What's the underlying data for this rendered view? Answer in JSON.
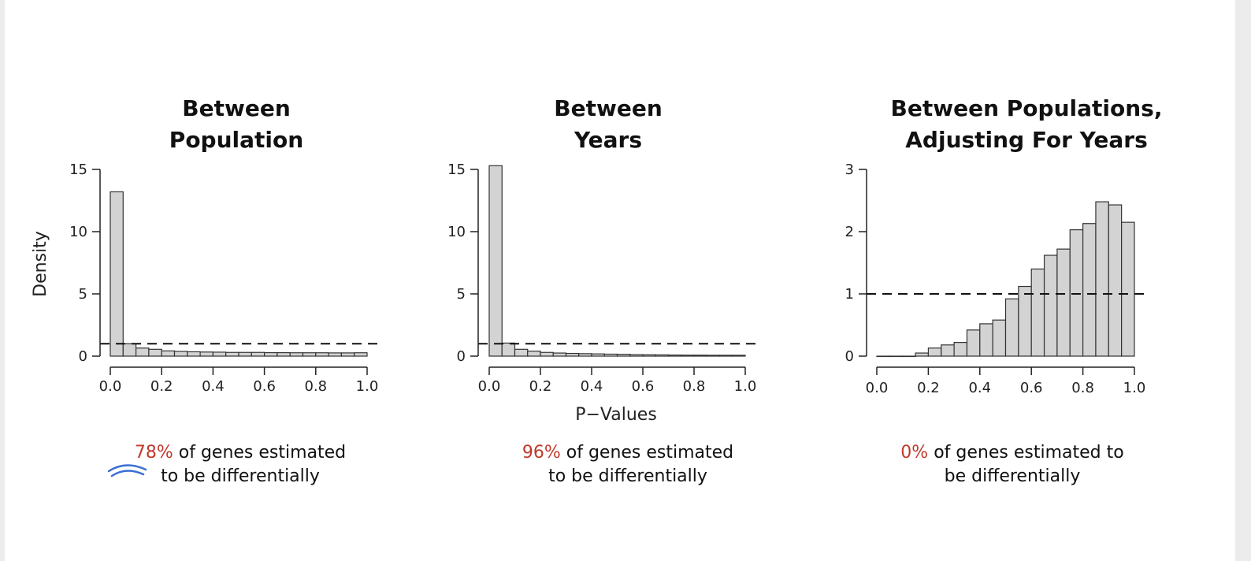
{
  "panels": [
    {
      "title_line1": "Between",
      "title_line2": "Population",
      "caption_pct": "78%",
      "caption_rest": " of genes estimated",
      "caption_line2": "to be differentially"
    },
    {
      "title_line1": "Between",
      "title_line2": "Years",
      "caption_pct": "96%",
      "caption_rest": " of genes estimated",
      "caption_line2": "to be differentially"
    },
    {
      "title_line1": "Between Populations,",
      "title_line2": "Adjusting For Years",
      "caption_pct": "0%",
      "caption_rest": " of genes estimated to",
      "caption_line2": "be differentially"
    }
  ],
  "colors": {
    "bar_fill": "#d3d3d3",
    "bar_stroke": "#333333",
    "highlight": "#c0392b",
    "pen_annotation": "#3b6fd6"
  },
  "chart_data": [
    {
      "type": "bar",
      "title": "Between Population",
      "xlabel": "",
      "ylabel": "Density",
      "bin_width": 0.05,
      "x_ticks": [
        "0.0",
        "0.2",
        "0.4",
        "0.6",
        "0.8",
        "1.0"
      ],
      "y_ticks": [
        "0",
        "5",
        "10",
        "15"
      ],
      "xlim": [
        0,
        1
      ],
      "ylim": [
        0,
        15
      ],
      "values": [
        13.2,
        1.0,
        0.65,
        0.55,
        0.42,
        0.38,
        0.35,
        0.33,
        0.32,
        0.3,
        0.3,
        0.3,
        0.28,
        0.28,
        0.27,
        0.27,
        0.27,
        0.26,
        0.26,
        0.27
      ],
      "reference_line": 1
    },
    {
      "type": "bar",
      "title": "Between Years",
      "xlabel": "P−Values",
      "ylabel": "",
      "bin_width": 0.05,
      "x_ticks": [
        "0.0",
        "0.2",
        "0.4",
        "0.6",
        "0.8",
        "1.0"
      ],
      "y_ticks": [
        "0",
        "5",
        "10",
        "15"
      ],
      "xlim": [
        0,
        1
      ],
      "ylim": [
        0,
        15
      ],
      "values": [
        15.3,
        1.05,
        0.55,
        0.4,
        0.3,
        0.25,
        0.22,
        0.2,
        0.18,
        0.16,
        0.15,
        0.12,
        0.11,
        0.1,
        0.09,
        0.08,
        0.08,
        0.07,
        0.07,
        0.07
      ],
      "reference_line": 1
    },
    {
      "type": "bar",
      "title": "Between Populations, Adjusting For Years",
      "xlabel": "",
      "ylabel": "",
      "bin_width": 0.05,
      "x_ticks": [
        "0.0",
        "0.2",
        "0.4",
        "0.6",
        "0.8",
        "1.0"
      ],
      "y_ticks": [
        "0",
        "1",
        "2",
        "3"
      ],
      "xlim": [
        0,
        1
      ],
      "ylim": [
        0,
        3
      ],
      "values": [
        0.0,
        0.0,
        0.0,
        0.05,
        0.13,
        0.18,
        0.22,
        0.42,
        0.52,
        0.58,
        0.92,
        1.12,
        1.4,
        1.62,
        1.72,
        2.03,
        2.13,
        2.48,
        2.43,
        2.15
      ],
      "reference_line": 1
    }
  ]
}
